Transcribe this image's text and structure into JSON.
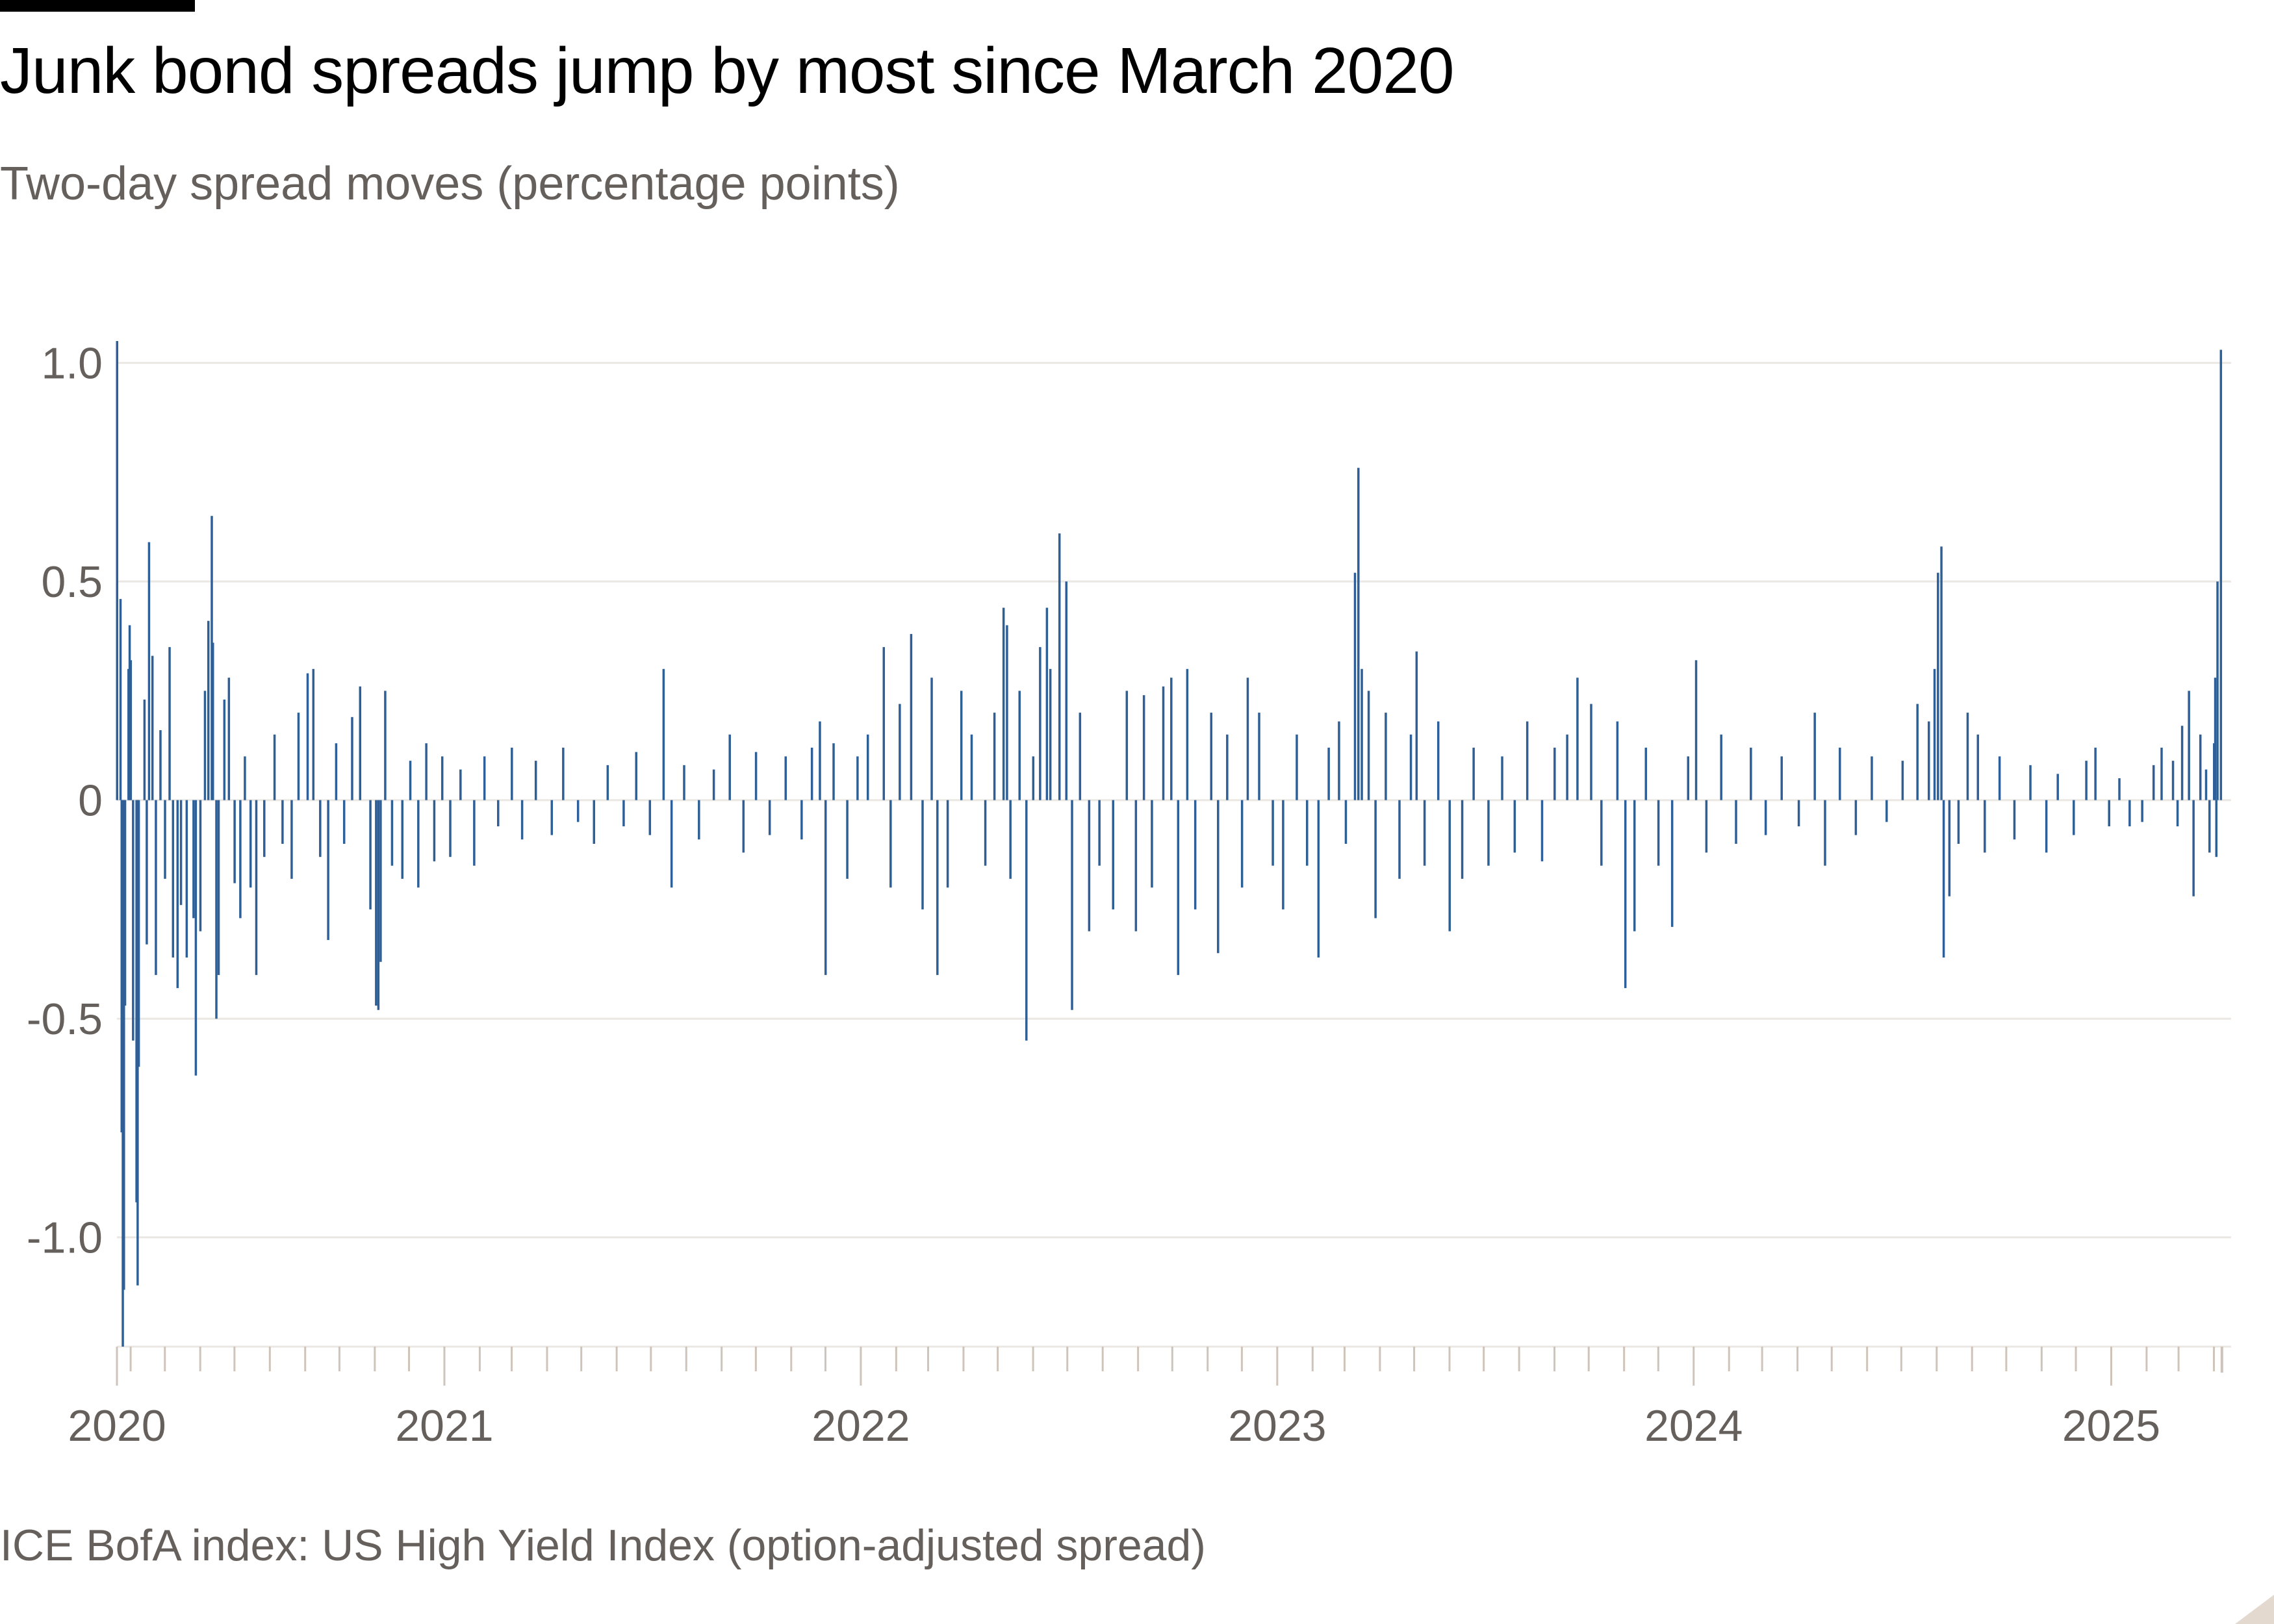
{
  "title": "Junk bond spreads jump by most since March 2020",
  "subtitle": "Two-day spread moves (percentage points)",
  "footer": "ICE BofA index: US High Yield Index (option-adjusted spread)",
  "colors": {
    "bar": "#2e5f97",
    "text": "#66605c",
    "grid": "#ebe8e4",
    "tick": "#cfc4ba"
  },
  "chart_data": {
    "type": "bar",
    "title": "Junk bond spreads jump by most since March 2020",
    "subtitle": "Two-day spread moves (percentage points)",
    "ylim": [
      -1.25,
      1.05
    ],
    "yticks": [
      1.0,
      0.5,
      0,
      -0.5,
      -1.0
    ],
    "ytick_labels": [
      "1.0",
      "0.5",
      "0",
      "-0.5",
      "-1.0"
    ],
    "xlim": [
      "2020-03-20",
      "2025-04-08"
    ],
    "xtick_labels": [
      "2020",
      "2021",
      "2022",
      "2023",
      "2024",
      "2025"
    ],
    "grid": "horizontal",
    "points": [
      [
        "2020-03-20",
        1.05
      ],
      [
        "2020-03-23",
        0.46
      ],
      [
        "2020-03-24",
        -0.76
      ],
      [
        "2020-03-25",
        -1.25
      ],
      [
        "2020-03-26",
        -1.12
      ],
      [
        "2020-03-27",
        -0.47
      ],
      [
        "2020-03-30",
        0.3
      ],
      [
        "2020-03-31",
        0.4
      ],
      [
        "2020-04-01",
        0.32
      ],
      [
        "2020-04-03",
        -0.55
      ],
      [
        "2020-04-06",
        -0.92
      ],
      [
        "2020-04-07",
        -1.11
      ],
      [
        "2020-04-08",
        -0.61
      ],
      [
        "2020-04-13",
        0.23
      ],
      [
        "2020-04-15",
        -0.33
      ],
      [
        "2020-04-17",
        0.59
      ],
      [
        "2020-04-20",
        0.33
      ],
      [
        "2020-04-23",
        -0.4
      ],
      [
        "2020-04-27",
        0.16
      ],
      [
        "2020-05-01",
        -0.18
      ],
      [
        "2020-05-05",
        0.35
      ],
      [
        "2020-05-08",
        -0.36
      ],
      [
        "2020-05-12",
        -0.43
      ],
      [
        "2020-05-15",
        -0.24
      ],
      [
        "2020-05-20",
        -0.36
      ],
      [
        "2020-05-26",
        -0.27
      ],
      [
        "2020-05-28",
        -0.63
      ],
      [
        "2020-06-01",
        -0.3
      ],
      [
        "2020-06-05",
        0.25
      ],
      [
        "2020-06-08",
        0.41
      ],
      [
        "2020-06-11",
        0.65
      ],
      [
        "2020-06-12",
        0.36
      ],
      [
        "2020-06-15",
        -0.5
      ],
      [
        "2020-06-17",
        -0.4
      ],
      [
        "2020-06-22",
        0.23
      ],
      [
        "2020-06-26",
        0.28
      ],
      [
        "2020-07-01",
        -0.19
      ],
      [
        "2020-07-06",
        -0.27
      ],
      [
        "2020-07-10",
        0.1
      ],
      [
        "2020-07-15",
        -0.2
      ],
      [
        "2020-07-20",
        -0.4
      ],
      [
        "2020-07-27",
        -0.13
      ],
      [
        "2020-08-05",
        0.15
      ],
      [
        "2020-08-12",
        -0.1
      ],
      [
        "2020-08-20",
        -0.18
      ],
      [
        "2020-08-26",
        0.2
      ],
      [
        "2020-09-03",
        0.29
      ],
      [
        "2020-09-08",
        0.3
      ],
      [
        "2020-09-14",
        -0.13
      ],
      [
        "2020-09-21",
        -0.32
      ],
      [
        "2020-09-28",
        0.13
      ],
      [
        "2020-10-05",
        -0.1
      ],
      [
        "2020-10-12",
        0.19
      ],
      [
        "2020-10-19",
        0.26
      ],
      [
        "2020-10-28",
        -0.25
      ],
      [
        "2020-11-02",
        -0.47
      ],
      [
        "2020-11-04",
        -0.48
      ],
      [
        "2020-11-06",
        -0.37
      ],
      [
        "2020-11-10",
        0.25
      ],
      [
        "2020-11-16",
        -0.15
      ],
      [
        "2020-11-25",
        -0.18
      ],
      [
        "2020-12-02",
        0.09
      ],
      [
        "2020-12-09",
        -0.2
      ],
      [
        "2020-12-16",
        0.13
      ],
      [
        "2020-12-23",
        -0.14
      ],
      [
        "2020-12-30",
        0.1
      ],
      [
        "2021-01-06",
        -0.13
      ],
      [
        "2021-01-15",
        0.07
      ],
      [
        "2021-01-27",
        -0.15
      ],
      [
        "2021-02-05",
        0.1
      ],
      [
        "2021-02-17",
        -0.06
      ],
      [
        "2021-03-01",
        0.12
      ],
      [
        "2021-03-10",
        -0.09
      ],
      [
        "2021-03-22",
        0.09
      ],
      [
        "2021-04-05",
        -0.08
      ],
      [
        "2021-04-15",
        0.12
      ],
      [
        "2021-04-28",
        -0.05
      ],
      [
        "2021-05-12",
        -0.1
      ],
      [
        "2021-05-24",
        0.08
      ],
      [
        "2021-06-07",
        -0.06
      ],
      [
        "2021-06-18",
        0.11
      ],
      [
        "2021-06-30",
        -0.08
      ],
      [
        "2021-07-12",
        0.3
      ],
      [
        "2021-07-19",
        -0.2
      ],
      [
        "2021-07-30",
        0.08
      ],
      [
        "2021-08-12",
        -0.09
      ],
      [
        "2021-08-25",
        0.07
      ],
      [
        "2021-09-08",
        0.15
      ],
      [
        "2021-09-20",
        -0.12
      ],
      [
        "2021-10-01",
        0.11
      ],
      [
        "2021-10-13",
        -0.08
      ],
      [
        "2021-10-27",
        0.1
      ],
      [
        "2021-11-10",
        -0.09
      ],
      [
        "2021-11-19",
        0.12
      ],
      [
        "2021-11-26",
        0.18
      ],
      [
        "2021-12-01",
        -0.4
      ],
      [
        "2021-12-08",
        0.13
      ],
      [
        "2021-12-20",
        -0.18
      ],
      [
        "2021-12-29",
        0.1
      ],
      [
        "2022-01-07",
        0.15
      ],
      [
        "2022-01-21",
        0.35
      ],
      [
        "2022-01-27",
        -0.2
      ],
      [
        "2022-02-04",
        0.22
      ],
      [
        "2022-02-14",
        0.38
      ],
      [
        "2022-02-24",
        -0.25
      ],
      [
        "2022-03-04",
        0.28
      ],
      [
        "2022-03-09",
        -0.4
      ],
      [
        "2022-03-18",
        -0.2
      ],
      [
        "2022-03-30",
        0.25
      ],
      [
        "2022-04-08",
        0.15
      ],
      [
        "2022-04-20",
        -0.15
      ],
      [
        "2022-04-28",
        0.2
      ],
      [
        "2022-05-06",
        0.44
      ],
      [
        "2022-05-09",
        0.4
      ],
      [
        "2022-05-12",
        -0.18
      ],
      [
        "2022-05-20",
        0.25
      ],
      [
        "2022-05-26",
        -0.55
      ],
      [
        "2022-06-01",
        0.1
      ],
      [
        "2022-06-07",
        0.35
      ],
      [
        "2022-06-13",
        0.44
      ],
      [
        "2022-06-16",
        0.3
      ],
      [
        "2022-06-24",
        0.61
      ],
      [
        "2022-06-30",
        0.5
      ],
      [
        "2022-07-05",
        -0.48
      ],
      [
        "2022-07-12",
        0.2
      ],
      [
        "2022-07-20",
        -0.3
      ],
      [
        "2022-07-29",
        -0.15
      ],
      [
        "2022-08-10",
        -0.25
      ],
      [
        "2022-08-22",
        0.25
      ],
      [
        "2022-08-30",
        -0.3
      ],
      [
        "2022-09-06",
        0.24
      ],
      [
        "2022-09-13",
        -0.2
      ],
      [
        "2022-09-23",
        0.26
      ],
      [
        "2022-09-30",
        0.28
      ],
      [
        "2022-10-06",
        -0.4
      ],
      [
        "2022-10-14",
        0.3
      ],
      [
        "2022-10-21",
        -0.25
      ],
      [
        "2022-11-04",
        0.2
      ],
      [
        "2022-11-10",
        -0.35
      ],
      [
        "2022-11-18",
        0.15
      ],
      [
        "2022-12-01",
        -0.2
      ],
      [
        "2022-12-06",
        0.28
      ],
      [
        "2022-12-16",
        0.2
      ],
      [
        "2022-12-28",
        -0.15
      ],
      [
        "2023-01-06",
        -0.25
      ],
      [
        "2023-01-18",
        0.15
      ],
      [
        "2023-01-27",
        -0.15
      ],
      [
        "2023-02-06",
        -0.36
      ],
      [
        "2023-02-15",
        0.12
      ],
      [
        "2023-02-24",
        0.18
      ],
      [
        "2023-03-02",
        -0.1
      ],
      [
        "2023-03-10",
        0.52
      ],
      [
        "2023-03-13",
        0.76
      ],
      [
        "2023-03-16",
        0.3
      ],
      [
        "2023-03-22",
        0.25
      ],
      [
        "2023-03-28",
        -0.27
      ],
      [
        "2023-04-06",
        0.2
      ],
      [
        "2023-04-18",
        -0.18
      ],
      [
        "2023-04-28",
        0.15
      ],
      [
        "2023-05-03",
        0.34
      ],
      [
        "2023-05-10",
        -0.15
      ],
      [
        "2023-05-22",
        0.18
      ],
      [
        "2023-06-01",
        -0.3
      ],
      [
        "2023-06-12",
        -0.18
      ],
      [
        "2023-06-22",
        0.12
      ],
      [
        "2023-07-05",
        -0.15
      ],
      [
        "2023-07-17",
        0.1
      ],
      [
        "2023-07-28",
        -0.12
      ],
      [
        "2023-08-08",
        0.18
      ],
      [
        "2023-08-21",
        -0.14
      ],
      [
        "2023-09-01",
        0.12
      ],
      [
        "2023-09-12",
        0.15
      ],
      [
        "2023-09-21",
        0.28
      ],
      [
        "2023-10-03",
        0.22
      ],
      [
        "2023-10-12",
        -0.15
      ],
      [
        "2023-10-26",
        0.18
      ],
      [
        "2023-11-02",
        -0.43
      ],
      [
        "2023-11-10",
        -0.3
      ],
      [
        "2023-11-20",
        0.12
      ],
      [
        "2023-12-01",
        -0.15
      ],
      [
        "2023-12-13",
        -0.29
      ],
      [
        "2023-12-27",
        0.1
      ],
      [
        "2024-01-03",
        0.32
      ],
      [
        "2024-01-12",
        -0.12
      ],
      [
        "2024-01-25",
        0.15
      ],
      [
        "2024-02-07",
        -0.1
      ],
      [
        "2024-02-20",
        0.12
      ],
      [
        "2024-03-04",
        -0.08
      ],
      [
        "2024-03-18",
        0.1
      ],
      [
        "2024-04-02",
        -0.06
      ],
      [
        "2024-04-16",
        0.2
      ],
      [
        "2024-04-25",
        -0.15
      ],
      [
        "2024-05-08",
        0.12
      ],
      [
        "2024-05-22",
        -0.08
      ],
      [
        "2024-06-05",
        0.1
      ],
      [
        "2024-06-18",
        -0.05
      ],
      [
        "2024-07-02",
        0.09
      ],
      [
        "2024-07-15",
        0.22
      ],
      [
        "2024-07-25",
        0.18
      ],
      [
        "2024-07-30",
        0.3
      ],
      [
        "2024-08-02",
        0.52
      ],
      [
        "2024-08-05",
        0.58
      ],
      [
        "2024-08-07",
        -0.36
      ],
      [
        "2024-08-12",
        -0.22
      ],
      [
        "2024-08-20",
        -0.1
      ],
      [
        "2024-08-28",
        0.2
      ],
      [
        "2024-09-06",
        0.15
      ],
      [
        "2024-09-12",
        -0.12
      ],
      [
        "2024-09-25",
        0.1
      ],
      [
        "2024-10-08",
        -0.09
      ],
      [
        "2024-10-22",
        0.08
      ],
      [
        "2024-11-05",
        -0.12
      ],
      [
        "2024-11-15",
        0.06
      ],
      [
        "2024-11-29",
        -0.08
      ],
      [
        "2024-12-10",
        0.09
      ],
      [
        "2024-12-18",
        0.12
      ],
      [
        "2024-12-30",
        -0.06
      ],
      [
        "2025-01-08",
        0.05
      ],
      [
        "2025-01-17",
        -0.06
      ],
      [
        "2025-01-28",
        -0.05
      ],
      [
        "2025-02-07",
        0.08
      ],
      [
        "2025-02-14",
        0.12
      ],
      [
        "2025-02-24",
        0.09
      ],
      [
        "2025-02-28",
        -0.06
      ],
      [
        "2025-03-04",
        0.17
      ],
      [
        "2025-03-10",
        0.25
      ],
      [
        "2025-03-14",
        -0.22
      ],
      [
        "2025-03-20",
        0.15
      ],
      [
        "2025-03-25",
        0.07
      ],
      [
        "2025-03-28",
        -0.12
      ],
      [
        "2025-04-01",
        0.13
      ],
      [
        "2025-04-02",
        0.28
      ],
      [
        "2025-04-03",
        -0.13
      ],
      [
        "2025-04-04",
        0.5
      ],
      [
        "2025-04-07",
        1.03
      ]
    ]
  }
}
